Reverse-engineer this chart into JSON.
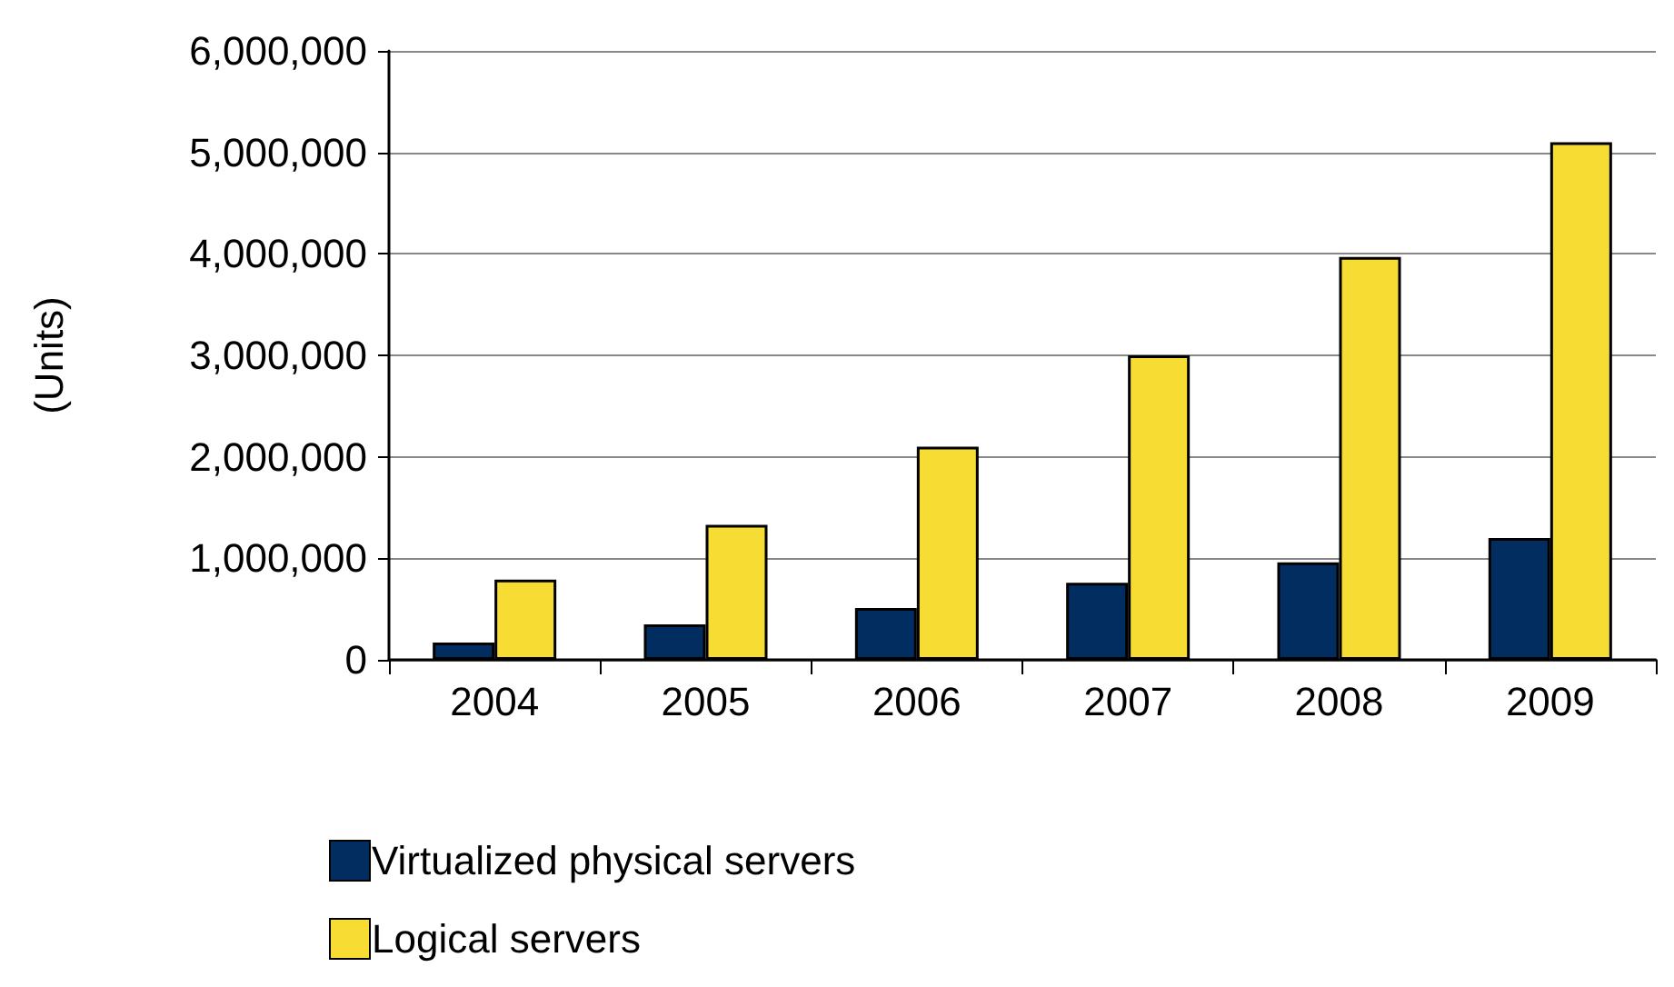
{
  "chart_data": {
    "type": "bar",
    "ylabel": "(Units)",
    "categories": [
      "2004",
      "2005",
      "2006",
      "2007",
      "2008",
      "2009"
    ],
    "series": [
      {
        "name": "Virtualized physical servers",
        "color": "#022d60",
        "values": [
          170000,
          350000,
          510000,
          760000,
          960000,
          1200000
        ]
      },
      {
        "name": "Logical servers",
        "color": "#f7dc34",
        "values": [
          790000,
          1330000,
          2100000,
          3000000,
          3970000,
          5100000
        ]
      }
    ],
    "ylim": [
      0,
      6000000
    ],
    "yticks": [
      0,
      {
        "value": 1000000,
        "label": "1,000,000"
      },
      {
        "value": 2000000,
        "label": "2,000,000"
      },
      {
        "value": 3000000,
        "label": "3,000,000"
      },
      {
        "value": 4000000,
        "label": "4,000,000"
      },
      {
        "value": 5000000,
        "label": "5,000,000"
      },
      {
        "value": 6000000,
        "label": "6,000,000"
      }
    ],
    "grid": "y",
    "legend": "bottom left"
  }
}
